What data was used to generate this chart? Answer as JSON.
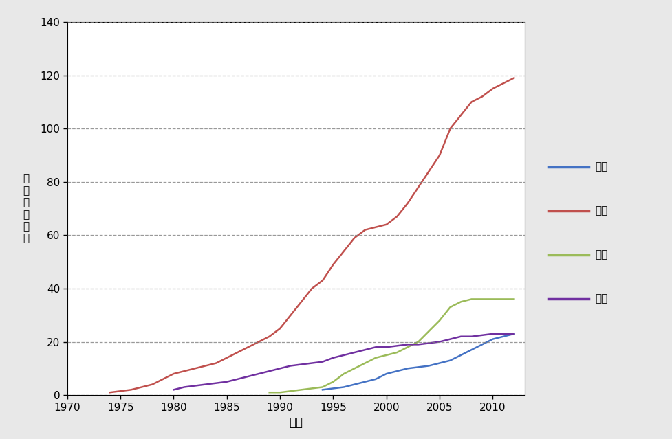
{
  "xlabel": "연도",
  "ylabel": "누\n적\n특\n허\n건\n수",
  "xlim": [
    1970,
    2013
  ],
  "ylim": [
    0,
    140
  ],
  "yticks": [
    0,
    20,
    40,
    60,
    80,
    100,
    120,
    140
  ],
  "xticks": [
    1970,
    1975,
    1980,
    1985,
    1990,
    1995,
    2000,
    2005,
    2010
  ],
  "series": {
    "한국": {
      "color": "#4472C4",
      "x": [
        1994,
        1995,
        1996,
        1997,
        1998,
        1999,
        2000,
        2001,
        2002,
        2003,
        2004,
        2005,
        2006,
        2007,
        2008,
        2009,
        2010,
        2011,
        2012
      ],
      "y": [
        2,
        2.5,
        3,
        4,
        5,
        6,
        8,
        9,
        10,
        10.5,
        11,
        12,
        13,
        15,
        17,
        19,
        21,
        22,
        23
      ]
    },
    "미국": {
      "color": "#C0504D",
      "x": [
        1974,
        1975,
        1976,
        1977,
        1978,
        1979,
        1980,
        1981,
        1982,
        1983,
        1984,
        1985,
        1986,
        1987,
        1988,
        1989,
        1990,
        1991,
        1992,
        1993,
        1994,
        1995,
        1996,
        1997,
        1998,
        1999,
        2000,
        2001,
        2002,
        2003,
        2004,
        2005,
        2006,
        2007,
        2008,
        2009,
        2010,
        2011,
        2012
      ],
      "y": [
        1,
        1.5,
        2,
        3,
        4,
        6,
        8,
        9,
        10,
        11,
        12,
        14,
        16,
        18,
        20,
        22,
        25,
        30,
        35,
        40,
        43,
        49,
        54,
        59,
        62,
        63,
        64,
        67,
        72,
        78,
        84,
        90,
        100,
        105,
        110,
        112,
        115,
        117,
        119
      ]
    },
    "일본": {
      "color": "#9BBB59",
      "x": [
        1989,
        1990,
        1991,
        1992,
        1993,
        1994,
        1995,
        1996,
        1997,
        1998,
        1999,
        2000,
        2001,
        2002,
        2003,
        2004,
        2005,
        2006,
        2007,
        2008,
        2009,
        2010,
        2011,
        2012
      ],
      "y": [
        1,
        1,
        1.5,
        2,
        2.5,
        3,
        5,
        8,
        10,
        12,
        14,
        15,
        16,
        18,
        20,
        24,
        28,
        33,
        35,
        36,
        36,
        36,
        36,
        36
      ]
    },
    "유럽": {
      "color": "#7030A0",
      "x": [
        1980,
        1981,
        1982,
        1983,
        1984,
        1985,
        1986,
        1987,
        1988,
        1989,
        1990,
        1991,
        1992,
        1993,
        1994,
        1995,
        1996,
        1997,
        1998,
        1999,
        2000,
        2001,
        2002,
        2003,
        2004,
        2005,
        2006,
        2007,
        2008,
        2009,
        2010,
        2011,
        2012
      ],
      "y": [
        2,
        3,
        3.5,
        4,
        4.5,
        5,
        6,
        7,
        8,
        9,
        10,
        11,
        11.5,
        12,
        12.5,
        14,
        15,
        16,
        17,
        18,
        18,
        18.5,
        19,
        19,
        19.5,
        20,
        21,
        22,
        22,
        22.5,
        23,
        23,
        23
      ]
    }
  },
  "legend_labels": [
    "한국",
    "미국",
    "일본",
    "유럽"
  ],
  "background_color": "#FFFFFF",
  "outer_background": "#E8E8E8",
  "grid_color": "#808080",
  "line_width": 1.8
}
